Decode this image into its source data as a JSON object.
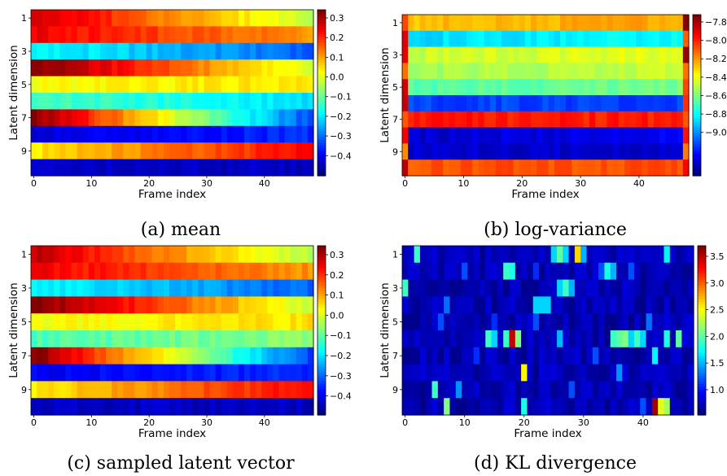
{
  "chart_data": [
    {
      "type": "heatmap",
      "caption": "(a) mean",
      "xlabel": "Frame index",
      "ylabel": "Latent dimension",
      "x_ticks": [
        "0",
        "10",
        "20",
        "30",
        "40"
      ],
      "y_ticks": [
        "1",
        "3",
        "5",
        "7",
        "9"
      ],
      "colorbar": {
        "ticks": [
          "0.3",
          "0.2",
          "0.1",
          "0.0",
          "−0.1",
          "−0.2",
          "−0.3",
          "−0.4"
        ],
        "ticks_neg": [
          "−0.1",
          "−0.2",
          "−0.3",
          "−0.4"
        ],
        "vmin": -0.45,
        "vmax": 0.33
      },
      "colormap": "jet",
      "frames": 49,
      "rows": [
        {
          "start": 0.28,
          "end": -0.02
        },
        {
          "start": 0.24,
          "end": 0.12
        },
        {
          "start": -0.15,
          "end": -0.28
        },
        {
          "start": 0.33,
          "end": 0.0
        },
        {
          "start": 0.03,
          "end": 0.06
        },
        {
          "start": -0.1,
          "end": -0.18
        },
        {
          "start": 0.33,
          "end": -0.3
        },
        {
          "start": -0.38,
          "end": -0.32
        },
        {
          "start": 0.05,
          "end": 0.24
        },
        {
          "start": -0.4,
          "end": -0.4
        }
      ]
    },
    {
      "type": "heatmap",
      "caption": "(b) log-variance",
      "xlabel": "Frame index",
      "ylabel": "Latent dimension",
      "x_ticks": [
        "0",
        "10",
        "20",
        "30",
        "40"
      ],
      "y_ticks": [
        "1",
        "3",
        "5",
        "7",
        "9"
      ],
      "colorbar": {
        "ticks_neg": [
          "−7.8",
          "−8.0",
          "−8.2",
          "−8.4",
          "−8.6",
          "−8.8",
          "−9.0"
        ],
        "vmin": -9.1,
        "vmax": -7.78
      },
      "colormap": "jet",
      "frames": 49,
      "rows": [
        {
          "start": -8.2,
          "end": -8.15
        },
        {
          "start": -8.65,
          "end": -8.6
        },
        {
          "start": -8.35,
          "end": -8.3
        },
        {
          "start": -8.4,
          "end": -8.35
        },
        {
          "start": -8.5,
          "end": -8.45
        },
        {
          "start": -8.85,
          "end": -8.85
        },
        {
          "start": -7.98,
          "end": -7.98
        },
        {
          "start": -9.0,
          "end": -8.95
        },
        {
          "start": -9.0,
          "end": -9.0
        },
        {
          "start": -8.05,
          "end": -8.05
        }
      ]
    },
    {
      "type": "heatmap",
      "caption": "(c) sampled latent vector",
      "xlabel": "Frame index",
      "ylabel": "Latent dimension",
      "x_ticks": [
        "0",
        "10",
        "20",
        "30",
        "40"
      ],
      "y_ticks": [
        "1",
        "3",
        "5",
        "7",
        "9"
      ],
      "colorbar": {
        "ticks": [
          "0.3",
          "0.2",
          "0.1",
          "0.0",
          "−0.1",
          "−0.2",
          "−0.3",
          "−0.4"
        ],
        "ticks_neg": [
          "−0.1",
          "−0.2",
          "−0.3",
          "−0.4"
        ],
        "vmin": -0.45,
        "vmax": 0.33
      },
      "colormap": "jet",
      "frames": 49,
      "rows": [
        {
          "start": 0.28,
          "end": -0.02
        },
        {
          "start": 0.24,
          "end": 0.12
        },
        {
          "start": -0.15,
          "end": -0.28
        },
        {
          "start": 0.33,
          "end": 0.0
        },
        {
          "start": 0.03,
          "end": 0.06
        },
        {
          "start": -0.1,
          "end": -0.05
        },
        {
          "start": 0.33,
          "end": -0.3
        },
        {
          "start": -0.36,
          "end": -0.32
        },
        {
          "start": 0.05,
          "end": 0.24
        },
        {
          "start": -0.4,
          "end": -0.4
        }
      ]
    },
    {
      "type": "heatmap",
      "caption": "(d) KL divergence",
      "xlabel": "Frame index",
      "ylabel": "Latent dimension",
      "x_ticks": [
        "0",
        "10",
        "20",
        "30",
        "40"
      ],
      "y_ticks": [
        "1",
        "3",
        "5",
        "7",
        "9"
      ],
      "colorbar": {
        "ticks": [
          "3.5",
          "3.0",
          "2.5",
          "2.0",
          "1.5",
          "1.0"
        ],
        "vmin": 0.6,
        "vmax": 3.6
      },
      "colormap": "jet",
      "frames": 49,
      "base": 0.75,
      "hotspots": [
        [
          0,
          2,
          1.9
        ],
        [
          0,
          25,
          1.6
        ],
        [
          0,
          26,
          2.0
        ],
        [
          0,
          27,
          1.6
        ],
        [
          0,
          29,
          2.6
        ],
        [
          0,
          30,
          1.5
        ],
        [
          0,
          44,
          1.7
        ],
        [
          1,
          10,
          1.2
        ],
        [
          1,
          17,
          1.9
        ],
        [
          1,
          18,
          1.8
        ],
        [
          1,
          22,
          1.1
        ],
        [
          1,
          33,
          1.2
        ],
        [
          1,
          34,
          1.8
        ],
        [
          1,
          35,
          1.5
        ],
        [
          1,
          38,
          1.2
        ],
        [
          2,
          0,
          1.9
        ],
        [
          2,
          26,
          1.6
        ],
        [
          2,
          27,
          1.9
        ],
        [
          2,
          28,
          1.5
        ],
        [
          3,
          7,
          1.3
        ],
        [
          3,
          22,
          1.6
        ],
        [
          3,
          23,
          1.6
        ],
        [
          3,
          24,
          1.6
        ],
        [
          4,
          6,
          1.2
        ],
        [
          4,
          15,
          1.1
        ],
        [
          4,
          22,
          1.2
        ],
        [
          4,
          41,
          1.3
        ],
        [
          5,
          14,
          1.9
        ],
        [
          5,
          15,
          1.6
        ],
        [
          5,
          17,
          1.9
        ],
        [
          5,
          18,
          3.4
        ],
        [
          5,
          19,
          2.1
        ],
        [
          5,
          26,
          1.5
        ],
        [
          5,
          35,
          1.9
        ],
        [
          5,
          36,
          2.0
        ],
        [
          5,
          37,
          2.1
        ],
        [
          5,
          38,
          1.6
        ],
        [
          5,
          39,
          1.9
        ],
        [
          5,
          40,
          1.6
        ],
        [
          5,
          44,
          1.8
        ],
        [
          5,
          46,
          2.0
        ],
        [
          6,
          12,
          1.1
        ],
        [
          6,
          32,
          1.2
        ],
        [
          6,
          42,
          1.7
        ],
        [
          7,
          20,
          2.5
        ],
        [
          7,
          36,
          1.4
        ],
        [
          8,
          5,
          1.9
        ],
        [
          8,
          9,
          1.4
        ],
        [
          8,
          28,
          1.2
        ],
        [
          9,
          7,
          2.1
        ],
        [
          9,
          20,
          1.8
        ],
        [
          9,
          42,
          3.5
        ],
        [
          9,
          43,
          2.4
        ],
        [
          9,
          44,
          2.2
        ],
        [
          9,
          40,
          1.2
        ]
      ]
    }
  ]
}
